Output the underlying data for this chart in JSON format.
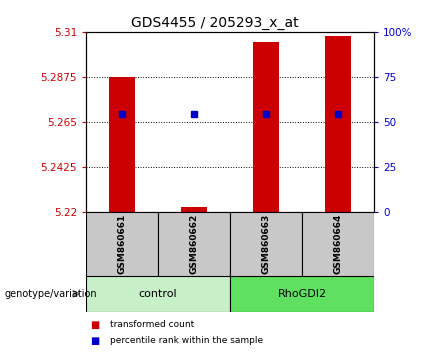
{
  "title": "GDS4455 / 205293_x_at",
  "samples": [
    "GSM860661",
    "GSM860662",
    "GSM860663",
    "GSM860664"
  ],
  "groups": [
    {
      "label": "control",
      "color": "#c8f0c8",
      "samples": [
        0,
        1
      ]
    },
    {
      "label": "RhoGDI2",
      "color": "#60e060",
      "samples": [
        2,
        3
      ]
    }
  ],
  "ylim_left": [
    5.22,
    5.31
  ],
  "ylim_right": [
    0,
    100
  ],
  "yticks_left": [
    5.22,
    5.2425,
    5.265,
    5.2875,
    5.31
  ],
  "yticks_right": [
    0,
    25,
    50,
    75,
    100
  ],
  "red_values": [
    5.2875,
    5.2228,
    5.305,
    5.308
  ],
  "blue_values": [
    5.2693,
    5.2693,
    5.2693,
    5.2693
  ],
  "red_color": "#cc0000",
  "blue_color": "#0000cc",
  "bar_bottom": 5.22,
  "bar_width": 0.35,
  "legend_red": "transformed count",
  "legend_blue": "percentile rank within the sample",
  "group_label": "genotype/variation"
}
